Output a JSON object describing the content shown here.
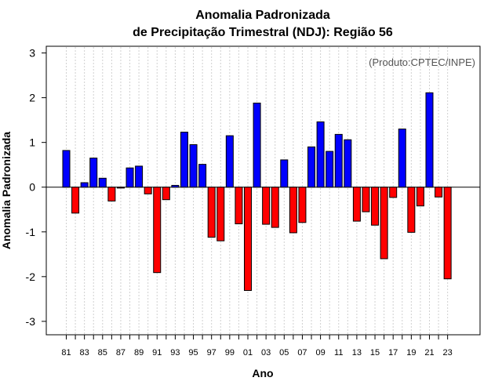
{
  "chart_data": {
    "type": "bar",
    "title_line1": "Anomalia Padronizada",
    "title_line2": "de Precipitação Trimestral (NDJ): Região 56",
    "xlabel": "Ano",
    "ylabel": "Anomalia Padronizada",
    "credit": "(Produto:CPTEC/INPE)",
    "ylim": [
      -3.3,
      3.15
    ],
    "yticks": [
      -3,
      -2,
      -1,
      0,
      1,
      2,
      3
    ],
    "ytick_labels": [
      "-3",
      "-2",
      "-1",
      "0",
      "1",
      "2",
      "3"
    ],
    "positive_color": "#0000ff",
    "negative_color": "#ff0000",
    "categories": [
      "81",
      "82",
      "83",
      "84",
      "85",
      "86",
      "87",
      "88",
      "89",
      "90",
      "91",
      "92",
      "93",
      "94",
      "95",
      "96",
      "97",
      "98",
      "99",
      "00",
      "01",
      "02",
      "03",
      "04",
      "05",
      "06",
      "07",
      "08",
      "09",
      "10",
      "11",
      "12",
      "13",
      "14",
      "15",
      "16",
      "17",
      "18",
      "19",
      "20",
      "21",
      "22",
      "23"
    ],
    "x_tick_labels": [
      "81",
      "83",
      "85",
      "87",
      "89",
      "91",
      "93",
      "95",
      "97",
      "99",
      "01",
      "03",
      "05",
      "07",
      "09",
      "11",
      "13",
      "15",
      "17",
      "19",
      "21",
      "23"
    ],
    "values": [
      0.82,
      -0.58,
      0.1,
      0.65,
      0.2,
      -0.31,
      -0.02,
      0.43,
      0.47,
      -0.15,
      -1.91,
      -0.28,
      0.04,
      1.23,
      0.95,
      0.51,
      -1.12,
      -1.2,
      1.15,
      -0.82,
      -2.31,
      1.88,
      -0.83,
      -0.9,
      0.61,
      -1.02,
      -0.79,
      0.9,
      1.46,
      0.8,
      1.18,
      1.06,
      -0.76,
      -0.55,
      -0.85,
      -1.6,
      -0.23,
      1.3,
      -1.01,
      -0.42,
      2.11,
      -0.22,
      -2.05
    ]
  }
}
